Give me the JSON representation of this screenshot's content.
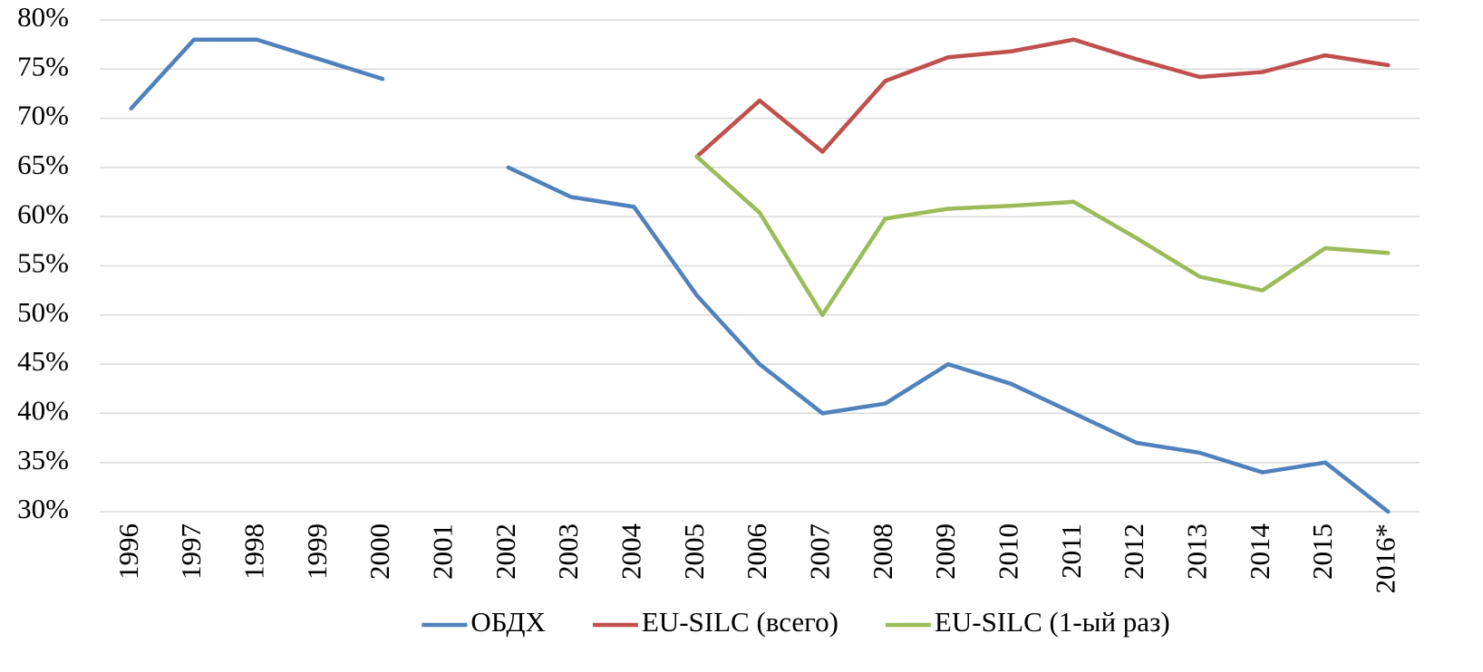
{
  "chart_data": {
    "type": "line",
    "categories": [
      "1996",
      "1997",
      "1998",
      "1999",
      "2000",
      "2001",
      "2002",
      "2003",
      "2004",
      "2005",
      "2006",
      "2007",
      "2008",
      "2009",
      "2010",
      "2011",
      "2012",
      "2013",
      "2014",
      "2015",
      "2016*"
    ],
    "series": [
      {
        "name": "ОБДХ",
        "color": "#4f81bd",
        "values": [
          71,
          78,
          78,
          76,
          74,
          null,
          65,
          62,
          61,
          52,
          45,
          40,
          41,
          45,
          43,
          40,
          37,
          36,
          34,
          35,
          30
        ]
      },
      {
        "name": "EU-SILC (всего)",
        "color": "#c0504d",
        "values": [
          null,
          null,
          null,
          null,
          null,
          null,
          null,
          null,
          null,
          66.1,
          71.8,
          66.6,
          73.8,
          76.2,
          76.8,
          78,
          76,
          74.2,
          74.7,
          76.4,
          75.4
        ]
      },
      {
        "name": "EU-SILC (1-ый раз)",
        "color": "#9bbb59",
        "values": [
          null,
          null,
          null,
          null,
          null,
          null,
          null,
          null,
          null,
          66.1,
          60.4,
          50,
          59.8,
          60.8,
          61.1,
          61.5,
          57.8,
          53.9,
          52.5,
          56.8,
          56.3
        ]
      }
    ],
    "ylim": [
      30,
      80
    ],
    "yticks": [
      {
        "value": 30,
        "label": "30%"
      },
      {
        "value": 35,
        "label": "35%"
      },
      {
        "value": 40,
        "label": "40%"
      },
      {
        "value": 45,
        "label": "45%"
      },
      {
        "value": 50,
        "label": "50%"
      },
      {
        "value": 55,
        "label": "55%"
      },
      {
        "value": 60,
        "label": "60%"
      },
      {
        "value": 65,
        "label": "65%"
      },
      {
        "value": 70,
        "label": "70%"
      },
      {
        "value": 75,
        "label": "75%"
      },
      {
        "value": 80,
        "label": "80%"
      }
    ],
    "grid": true,
    "legend": "bottom"
  }
}
